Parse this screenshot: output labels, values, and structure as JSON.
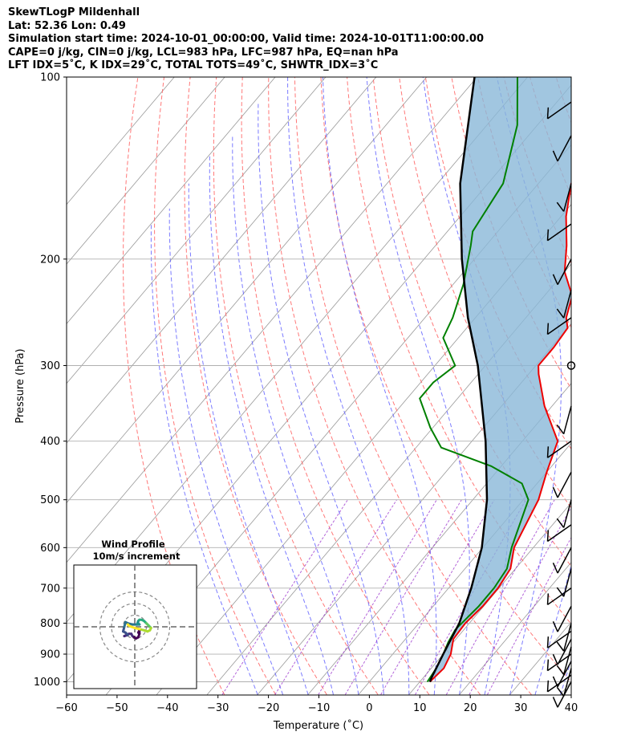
{
  "header": {
    "line1": "SkewTLogP Mildenhall",
    "line2": "Lat: 52.36   Lon: 0.49",
    "line3": "Simulation start time: 2024-10-01_00:00:00, Valid time: 2024-10-01T11:00:00.00",
    "line4": "CAPE=0 j/kg, CIN=0 j/kg, LCL=983 hPa, LFC=987 hPa, EQ=nan hPa",
    "line5": "LFT IDX=5˚C, K IDX=29˚C, TOTAL TOTS=49˚C, SHWTR_IDX=3˚C"
  },
  "colors": {
    "temperature": "#ee0000",
    "dewpoint": "#008000",
    "parcel": "#000000",
    "cape_fill": "#8ab8d8",
    "isotherm": "#999999",
    "dry_adiabat": "#ff6060",
    "moist_adiabat": "#5a5aff",
    "mixing_ratio": "#9932cc",
    "grid": "#b0b0b0"
  },
  "chart_data": [
    {
      "type": "line",
      "title": "",
      "xlabel": "Temperature (˚C)",
      "ylabel": "Pressure (hPa)",
      "xlim": [
        -60,
        40
      ],
      "ylim": [
        1050,
        100
      ],
      "yscale": "log",
      "skew": true,
      "grid": true,
      "x_ticks": [
        "−60",
        "−50",
        "−40",
        "−30",
        "−20",
        "−10",
        "0",
        "10",
        "20",
        "30",
        "40"
      ],
      "y_ticks": [
        "100",
        "200",
        "300",
        "400",
        "500",
        "600",
        "700",
        "800",
        "900",
        "1000"
      ],
      "series": [
        {
          "name": "",
          "role": "temperature",
          "points": [
            [
              1000,
              12.0
            ],
            [
              950,
              12.5
            ],
            [
              900,
              11.5
            ],
            [
              850,
              9.5
            ],
            [
              800,
              9.2
            ],
            [
              750,
              9.8
            ],
            [
              700,
              9.8
            ],
            [
              650,
              9.0
            ],
            [
              600,
              6.2
            ],
            [
              500,
              3.0
            ],
            [
              450,
              0.0
            ],
            [
              400,
              -3.0
            ],
            [
              350,
              -11.5
            ],
            [
              310,
              -18.0
            ],
            [
              300,
              -19.5
            ],
            [
              280,
              -19.5
            ],
            [
              260,
              -20.0
            ],
            [
              250,
              -22.0
            ],
            [
              230,
              -24.5
            ],
            [
              210,
              -30.0
            ],
            [
              190,
              -34.0
            ],
            [
              170,
              -39.0
            ],
            [
              150,
              -43.5
            ],
            [
              130,
              -46.5
            ],
            [
              120,
              -52.5
            ],
            [
              110,
              -54.0
            ],
            [
              100,
              -55.0
            ]
          ]
        },
        {
          "name": "",
          "role": "dewpoint",
          "points": [
            [
              1000,
              11.5
            ],
            [
              950,
              11.0
            ],
            [
              900,
              10.0
            ],
            [
              860,
              9.0
            ],
            [
              820,
              8.3
            ],
            [
              750,
              9.0
            ],
            [
              700,
              9.0
            ],
            [
              650,
              8.3
            ],
            [
              600,
              5.7
            ],
            [
              500,
              1.0
            ],
            [
              470,
              -3.0
            ],
            [
              440,
              -12.0
            ],
            [
              410,
              -25.0
            ],
            [
              380,
              -30.5
            ],
            [
              340,
              -37.5
            ],
            [
              320,
              -37.5
            ],
            [
              300,
              -36.0
            ],
            [
              270,
              -43.0
            ],
            [
              250,
              -44.5
            ],
            [
              220,
              -48.0
            ],
            [
              190,
              -53.0
            ],
            [
              180,
              -55.0
            ],
            [
              150,
              -57.0
            ],
            [
              120,
              -64.0
            ],
            [
              100,
              -72.0
            ]
          ]
        },
        {
          "name": "",
          "role": "parcel",
          "points": [
            [
              1000,
              12.0
            ],
            [
              983,
              11.6
            ],
            [
              900,
              10.0
            ],
            [
              800,
              8.0
            ],
            [
              700,
              4.5
            ],
            [
              600,
              -0.2
            ],
            [
              500,
              -7.2
            ],
            [
              400,
              -17.3
            ],
            [
              300,
              -31.5
            ],
            [
              250,
              -41.5
            ],
            [
              200,
              -52.5
            ],
            [
              150,
              -65.5
            ],
            [
              100,
              -80.5
            ]
          ]
        }
      ],
      "wind_barbs": [
        {
          "pressure": 1000,
          "glyph": "barb"
        },
        {
          "pressure": 975,
          "glyph": "barb"
        },
        {
          "pressure": 950,
          "glyph": "barb"
        },
        {
          "pressure": 925,
          "glyph": "barb"
        },
        {
          "pressure": 900,
          "glyph": "barb"
        },
        {
          "pressure": 875,
          "glyph": "barb"
        },
        {
          "pressure": 850,
          "glyph": "barb"
        },
        {
          "pressure": 825,
          "glyph": "barb"
        },
        {
          "pressure": 800,
          "glyph": "barb"
        },
        {
          "pressure": 750,
          "glyph": "barb"
        },
        {
          "pressure": 700,
          "glyph": "barb"
        },
        {
          "pressure": 650,
          "glyph": "barb"
        },
        {
          "pressure": 600,
          "glyph": "barb"
        },
        {
          "pressure": 550,
          "glyph": "barb"
        },
        {
          "pressure": 500,
          "glyph": "barb"
        },
        {
          "pressure": 450,
          "glyph": "barb"
        },
        {
          "pressure": 400,
          "glyph": "barb"
        },
        {
          "pressure": 350,
          "glyph": "barb"
        },
        {
          "pressure": 300,
          "glyph": "calm-circle"
        },
        {
          "pressure": 250,
          "glyph": "barb"
        },
        {
          "pressure": 225,
          "glyph": "barb"
        },
        {
          "pressure": 200,
          "glyph": "barb"
        },
        {
          "pressure": 175,
          "glyph": "barb"
        },
        {
          "pressure": 150,
          "glyph": "barb"
        },
        {
          "pressure": 125,
          "glyph": "barb"
        },
        {
          "pressure": 110,
          "glyph": "barb"
        }
      ]
    },
    {
      "type": "line",
      "title": "Wind Profile",
      "subtitle": "10m/s increment",
      "ring_increment_ms": 10,
      "rings": 3,
      "colormap": "viridis",
      "hodograph_uv": [
        [
          3,
          5
        ],
        [
          4,
          3
        ],
        [
          4,
          6
        ],
        [
          3,
          9
        ],
        [
          1,
          10
        ],
        [
          -2,
          8
        ],
        [
          -3,
          6
        ],
        [
          -5,
          6
        ],
        [
          -9,
          8
        ],
        [
          -6,
          7
        ],
        [
          -7,
          6
        ],
        [
          -8,
          5
        ],
        [
          -10,
          4
        ],
        [
          -9,
          0
        ],
        [
          -8,
          -4
        ],
        [
          -6,
          -3
        ],
        [
          -2,
          -2
        ],
        [
          2,
          -2
        ],
        [
          4,
          -2
        ],
        [
          3,
          -3
        ],
        [
          2,
          -2
        ],
        [
          3,
          -5
        ],
        [
          4,
          -6
        ],
        [
          6,
          -6
        ],
        [
          8,
          -5
        ],
        [
          9,
          -4
        ],
        [
          10,
          -3
        ],
        [
          11,
          -2
        ],
        [
          12,
          -1
        ],
        [
          13,
          0
        ],
        [
          14,
          1
        ],
        [
          13,
          3
        ],
        [
          11,
          4
        ],
        [
          8,
          3
        ],
        [
          4,
          2
        ],
        [
          0,
          1
        ],
        [
          -3,
          0
        ],
        [
          -5,
          -1
        ],
        [
          -6,
          -2
        ]
      ]
    }
  ]
}
